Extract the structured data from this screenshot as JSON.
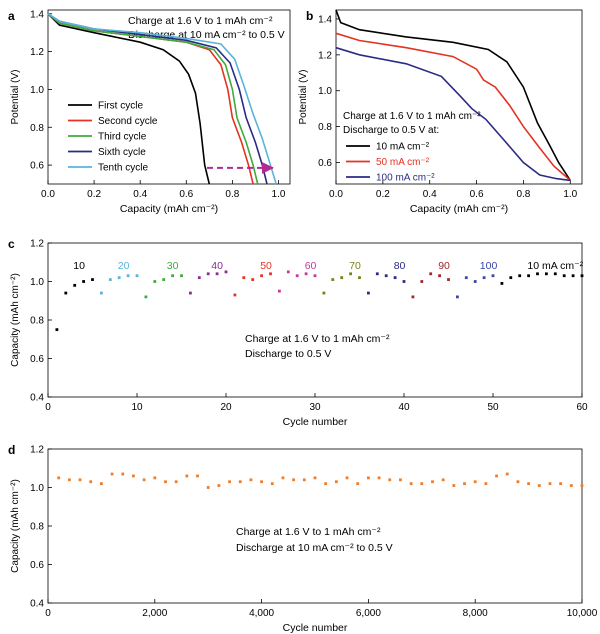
{
  "panels": {
    "a": {
      "letter": "a",
      "note1": "Charge at 1.6 V to 1 mAh cm⁻²",
      "note2": "Discharge at 10 mA cm⁻² to 0.5 V"
    },
    "b": {
      "letter": "b",
      "note1": "Charge at 1.6 V to 1 mAh cm⁻²",
      "note2": "Discharge to 0.5 V at:"
    },
    "c": {
      "letter": "c",
      "note1": "Charge at 1.6 V to 1 mAh cm⁻²",
      "note2": "Discharge to 0.5 V"
    },
    "d": {
      "letter": "d",
      "note1": "Charge at 1.6 V to 1 mAh cm⁻²",
      "note2": "Discharge at 10 mA cm⁻² to 0.5 V"
    }
  },
  "chart_data": [
    {
      "type": "line",
      "xlabel": "Capacity (mAh cm⁻²)",
      "ylabel": "Potential (V)",
      "xlim": [
        0,
        1.05
      ],
      "ylim": [
        0.5,
        1.42
      ],
      "xticks": [
        "0.0",
        "0.2",
        "0.4",
        "0.6",
        "0.8",
        "1.0"
      ],
      "yticks": [
        "0.6",
        "0.8",
        "1.0",
        "1.2",
        "1.4"
      ],
      "legend": "bottom-left",
      "series": [
        {
          "name": "First cycle",
          "color": "#000000",
          "points": [
            [
              0,
              1.4
            ],
            [
              0.05,
              1.34
            ],
            [
              0.2,
              1.3
            ],
            [
              0.4,
              1.25
            ],
            [
              0.5,
              1.21
            ],
            [
              0.57,
              1.15
            ],
            [
              0.61,
              1.08
            ],
            [
              0.64,
              0.98
            ],
            [
              0.66,
              0.82
            ],
            [
              0.68,
              0.6
            ],
            [
              0.7,
              0.5
            ]
          ]
        },
        {
          "name": "Second cycle",
          "color": "#e53222",
          "points": [
            [
              0,
              1.4
            ],
            [
              0.05,
              1.35
            ],
            [
              0.2,
              1.31
            ],
            [
              0.4,
              1.28
            ],
            [
              0.6,
              1.25
            ],
            [
              0.7,
              1.21
            ],
            [
              0.75,
              1.13
            ],
            [
              0.78,
              1.0
            ],
            [
              0.8,
              0.85
            ],
            [
              0.84,
              0.72
            ],
            [
              0.87,
              0.6
            ],
            [
              0.89,
              0.5
            ]
          ]
        },
        {
          "name": "Third cycle",
          "color": "#3fab3c",
          "points": [
            [
              0,
              1.4
            ],
            [
              0.05,
              1.35
            ],
            [
              0.2,
              1.31
            ],
            [
              0.4,
              1.28
            ],
            [
              0.6,
              1.25
            ],
            [
              0.72,
              1.21
            ],
            [
              0.77,
              1.13
            ],
            [
              0.8,
              1.0
            ],
            [
              0.82,
              0.85
            ],
            [
              0.86,
              0.72
            ],
            [
              0.89,
              0.6
            ],
            [
              0.91,
              0.5
            ]
          ]
        },
        {
          "name": "Sixth cycle",
          "color": "#2a2c84",
          "points": [
            [
              0,
              1.4
            ],
            [
              0.05,
              1.36
            ],
            [
              0.2,
              1.32
            ],
            [
              0.4,
              1.29
            ],
            [
              0.6,
              1.26
            ],
            [
              0.73,
              1.22
            ],
            [
              0.79,
              1.14
            ],
            [
              0.83,
              1.0
            ],
            [
              0.86,
              0.85
            ],
            [
              0.9,
              0.72
            ],
            [
              0.93,
              0.6
            ],
            [
              0.95,
              0.5
            ]
          ]
        },
        {
          "name": "Tenth cycle",
          "color": "#5ab4d8",
          "points": [
            [
              0,
              1.4
            ],
            [
              0.05,
              1.36
            ],
            [
              0.2,
              1.32
            ],
            [
              0.4,
              1.3
            ],
            [
              0.6,
              1.27
            ],
            [
              0.75,
              1.24
            ],
            [
              0.81,
              1.16
            ],
            [
              0.85,
              1.02
            ],
            [
              0.89,
              0.87
            ],
            [
              0.93,
              0.74
            ],
            [
              0.96,
              0.62
            ],
            [
              0.99,
              0.5
            ]
          ]
        }
      ],
      "annotations": [
        {
          "type": "dashed-arrow",
          "color": "#b02b93",
          "from": [
            0.69,
            0.585
          ],
          "to": [
            0.98,
            0.585
          ]
        }
      ]
    },
    {
      "type": "line",
      "xlabel": "Capacity (mAh cm⁻²)",
      "ylabel": "Potential (V)",
      "xlim": [
        0,
        1.05
      ],
      "ylim": [
        0.48,
        1.45
      ],
      "xticks": [
        "0.0",
        "0.2",
        "0.4",
        "0.6",
        "0.8",
        "1.0"
      ],
      "yticks": [
        "0.6",
        "0.8",
        "1.0",
        "1.2",
        "1.4"
      ],
      "legend": "bottom-left",
      "series": [
        {
          "name": "10 mA cm⁻²",
          "color": "#000000",
          "points": [
            [
              0,
              1.45
            ],
            [
              0.02,
              1.38
            ],
            [
              0.1,
              1.34
            ],
            [
              0.3,
              1.3
            ],
            [
              0.5,
              1.27
            ],
            [
              0.65,
              1.23
            ],
            [
              0.73,
              1.16
            ],
            [
              0.8,
              1.02
            ],
            [
              0.86,
              0.82
            ],
            [
              0.91,
              0.7
            ],
            [
              0.95,
              0.6
            ],
            [
              1.0,
              0.5
            ]
          ]
        },
        {
          "name": "50 mA cm⁻²",
          "color": "#e53222",
          "points": [
            [
              0,
              1.32
            ],
            [
              0.1,
              1.28
            ],
            [
              0.3,
              1.24
            ],
            [
              0.5,
              1.19
            ],
            [
              0.6,
              1.12
            ],
            [
              0.63,
              1.06
            ],
            [
              0.68,
              1.02
            ],
            [
              0.74,
              0.92
            ],
            [
              0.8,
              0.8
            ],
            [
              0.87,
              0.68
            ],
            [
              0.93,
              0.58
            ],
            [
              1.0,
              0.5
            ]
          ]
        },
        {
          "name": "100 mA cm⁻²",
          "color": "#2a2c84",
          "points": [
            [
              0,
              1.24
            ],
            [
              0.1,
              1.2
            ],
            [
              0.3,
              1.15
            ],
            [
              0.45,
              1.08
            ],
            [
              0.53,
              0.97
            ],
            [
              0.58,
              0.9
            ],
            [
              0.64,
              0.84
            ],
            [
              0.72,
              0.72
            ],
            [
              0.8,
              0.6
            ],
            [
              0.87,
              0.53
            ],
            [
              0.94,
              0.51
            ],
            [
              1.0,
              0.5
            ]
          ]
        }
      ]
    },
    {
      "type": "scatter",
      "xlabel": "Cycle number",
      "ylabel": "Capacity (mAh cm⁻²)",
      "xlim": [
        0,
        60
      ],
      "ylim": [
        0.4,
        1.2
      ],
      "xticks": [
        "0",
        "10",
        "20",
        "30",
        "40",
        "50",
        "60"
      ],
      "yticks": [
        "0.4",
        "0.6",
        "0.8",
        "1.0",
        "1.2"
      ],
      "rate_labels": [
        {
          "text": "10",
          "color": "#000000",
          "x": 3.5
        },
        {
          "text": "20",
          "color": "#5ab4d8",
          "x": 8.5
        },
        {
          "text": "30",
          "color": "#3fab3c",
          "x": 14
        },
        {
          "text": "40",
          "color": "#8b2c8e",
          "x": 19
        },
        {
          "text": "50",
          "color": "#e53222",
          "x": 24.5
        },
        {
          "text": "60",
          "color": "#c03aa0",
          "x": 29.5
        },
        {
          "text": "70",
          "color": "#7a7f19",
          "x": 34.5
        },
        {
          "text": "80",
          "color": "#2a2c84",
          "x": 39.5
        },
        {
          "text": "90",
          "color": "#a3262c",
          "x": 44.5
        },
        {
          "text": "100",
          "color": "#3a46a8",
          "x": 49.5
        },
        {
          "text": "10 mA cm⁻²",
          "color": "#000000",
          "x": 57
        }
      ],
      "series": [
        {
          "color": "#000000",
          "x": [
            1,
            2,
            3,
            4,
            5
          ],
          "y": [
            0.75,
            0.94,
            0.98,
            1.0,
            1.01
          ]
        },
        {
          "color": "#5ab4d8",
          "x": [
            6,
            7,
            8,
            9,
            10
          ],
          "y": [
            0.94,
            1.01,
            1.02,
            1.03,
            1.03
          ]
        },
        {
          "color": "#3fab3c",
          "x": [
            11,
            12,
            13,
            14,
            15
          ],
          "y": [
            0.92,
            1.0,
            1.01,
            1.03,
            1.03
          ]
        },
        {
          "color": "#8b2c8e",
          "x": [
            16,
            17,
            18,
            19,
            20
          ],
          "y": [
            0.94,
            1.02,
            1.04,
            1.04,
            1.05
          ]
        },
        {
          "color": "#e53222",
          "x": [
            21,
            22,
            23,
            24,
            25
          ],
          "y": [
            0.93,
            1.02,
            1.01,
            1.03,
            1.04
          ]
        },
        {
          "color": "#c03aa0",
          "x": [
            26,
            27,
            28,
            29,
            30
          ],
          "y": [
            0.95,
            1.05,
            1.03,
            1.04,
            1.03
          ]
        },
        {
          "color": "#7a7f19",
          "x": [
            31,
            32,
            33,
            34,
            35
          ],
          "y": [
            0.94,
            1.01,
            1.02,
            1.04,
            1.02
          ]
        },
        {
          "color": "#2a2c84",
          "x": [
            36,
            37,
            38,
            39,
            40
          ],
          "y": [
            0.94,
            1.04,
            1.03,
            1.02,
            1.0
          ]
        },
        {
          "color": "#a3262c",
          "x": [
            41,
            42,
            43,
            44,
            45
          ],
          "y": [
            0.92,
            1.0,
            1.04,
            1.03,
            1.01
          ]
        },
        {
          "color": "#3a46a8",
          "x": [
            46,
            47,
            48,
            49,
            50
          ],
          "y": [
            0.92,
            1.02,
            1.0,
            1.02,
            1.03
          ]
        },
        {
          "color": "#000000",
          "x": [
            51,
            52,
            53,
            54,
            55,
            56,
            57,
            58,
            59,
            60
          ],
          "y": [
            0.99,
            1.02,
            1.03,
            1.03,
            1.04,
            1.04,
            1.04,
            1.03,
            1.03,
            1.03
          ]
        }
      ]
    },
    {
      "type": "scatter",
      "xlabel": "Cycle number",
      "ylabel": "Capacity (mAh cm⁻²)",
      "xlim": [
        0,
        10000
      ],
      "ylim": [
        0.4,
        1.2
      ],
      "xticks": [
        "0",
        "2,000",
        "4,000",
        "6,000",
        "8,000",
        "10,000"
      ],
      "yticks": [
        "0.4",
        "0.6",
        "0.8",
        "1.0",
        "1.2"
      ],
      "series": [
        {
          "color": "#ef7d2a",
          "x": [
            200,
            400,
            600,
            800,
            1000,
            1200,
            1400,
            1600,
            1800,
            2000,
            2200,
            2400,
            2600,
            2800,
            3000,
            3200,
            3400,
            3600,
            3800,
            4000,
            4200,
            4400,
            4600,
            4800,
            5000,
            5200,
            5400,
            5600,
            5800,
            6000,
            6200,
            6400,
            6600,
            6800,
            7000,
            7200,
            7400,
            7600,
            7800,
            8000,
            8200,
            8400,
            8600,
            8800,
            9000,
            9200,
            9400,
            9600,
            9800,
            10000
          ],
          "y": [
            1.05,
            1.04,
            1.04,
            1.03,
            1.02,
            1.07,
            1.07,
            1.06,
            1.04,
            1.05,
            1.03,
            1.03,
            1.06,
            1.06,
            1.0,
            1.01,
            1.03,
            1.03,
            1.04,
            1.03,
            1.02,
            1.05,
            1.04,
            1.04,
            1.05,
            1.02,
            1.03,
            1.05,
            1.02,
            1.05,
            1.05,
            1.04,
            1.04,
            1.02,
            1.02,
            1.03,
            1.04,
            1.01,
            1.02,
            1.03,
            1.02,
            1.06,
            1.07,
            1.03,
            1.02,
            1.01,
            1.02,
            1.02,
            1.01,
            1.01
          ]
        }
      ]
    }
  ]
}
